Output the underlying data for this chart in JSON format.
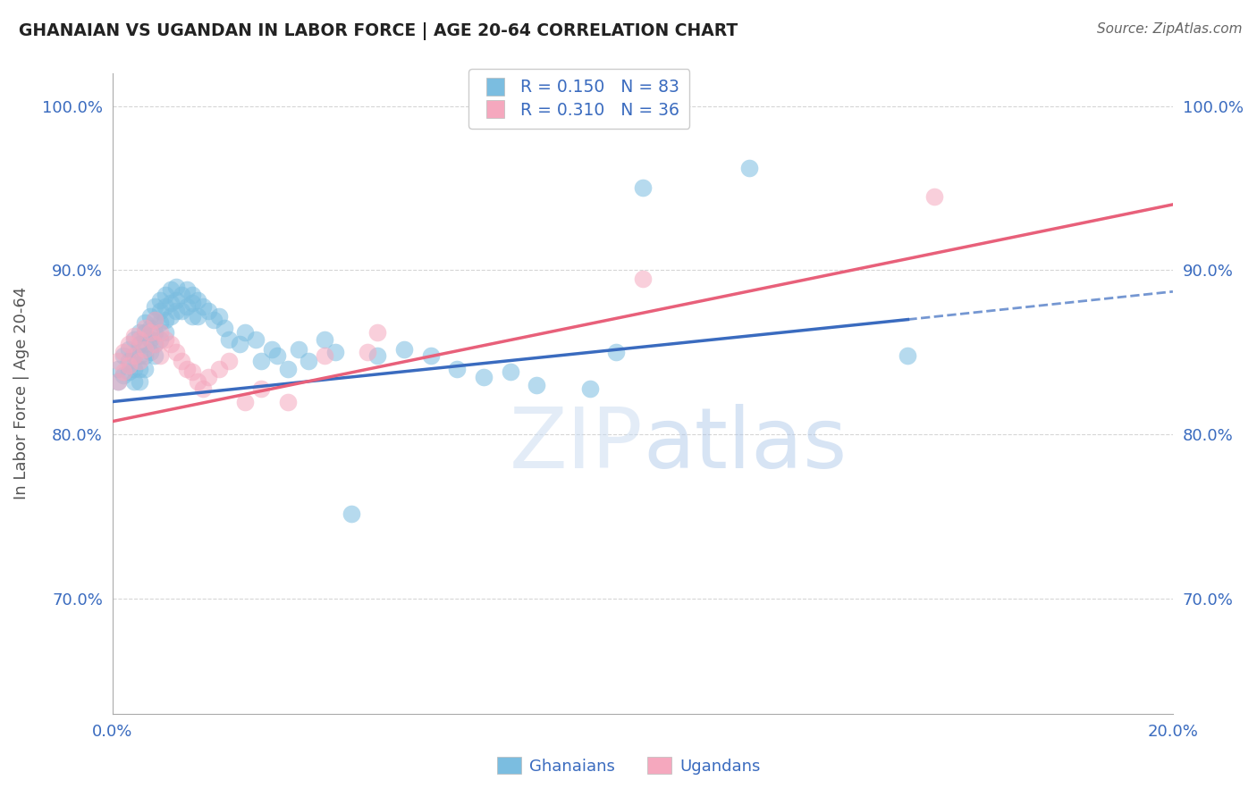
{
  "title": "GHANAIAN VS UGANDAN IN LABOR FORCE | AGE 20-64 CORRELATION CHART",
  "source": "Source: ZipAtlas.com",
  "ylabel": "In Labor Force | Age 20-64",
  "xlim": [
    0.0,
    0.2
  ],
  "ylim": [
    0.63,
    1.02
  ],
  "yticks": [
    0.7,
    0.8,
    0.9,
    1.0
  ],
  "ytick_labels": [
    "70.0%",
    "80.0%",
    "90.0%",
    "100.0%"
  ],
  "xticks": [
    0.0,
    0.025,
    0.05,
    0.075,
    0.1,
    0.125,
    0.15,
    0.175,
    0.2
  ],
  "xtick_labels": [
    "0.0%",
    "",
    "",
    "",
    "",
    "",
    "",
    "",
    "20.0%"
  ],
  "blue_R": 0.15,
  "blue_N": 83,
  "pink_R": 0.31,
  "pink_N": 36,
  "blue_color": "#7bbde0",
  "pink_color": "#f5a8be",
  "trend_blue": "#3a6bbf",
  "trend_pink": "#e8607a",
  "background_color": "#ffffff",
  "grid_color": "#cccccc",
  "text_color": "#3a6bbf",
  "watermark": "ZIPatlas",
  "blue_x": [
    0.001,
    0.001,
    0.002,
    0.002,
    0.003,
    0.003,
    0.003,
    0.004,
    0.004,
    0.004,
    0.004,
    0.005,
    0.005,
    0.005,
    0.005,
    0.005,
    0.006,
    0.006,
    0.006,
    0.006,
    0.006,
    0.007,
    0.007,
    0.007,
    0.007,
    0.008,
    0.008,
    0.008,
    0.008,
    0.008,
    0.009,
    0.009,
    0.009,
    0.009,
    0.01,
    0.01,
    0.01,
    0.01,
    0.011,
    0.011,
    0.011,
    0.012,
    0.012,
    0.012,
    0.013,
    0.013,
    0.014,
    0.014,
    0.015,
    0.015,
    0.015,
    0.016,
    0.016,
    0.017,
    0.018,
    0.019,
    0.02,
    0.021,
    0.022,
    0.024,
    0.025,
    0.027,
    0.028,
    0.03,
    0.031,
    0.033,
    0.035,
    0.037,
    0.04,
    0.042,
    0.045,
    0.05,
    0.055,
    0.06,
    0.065,
    0.07,
    0.075,
    0.08,
    0.09,
    0.095,
    0.1,
    0.12,
    0.15
  ],
  "blue_y": [
    0.84,
    0.832,
    0.848,
    0.836,
    0.852,
    0.845,
    0.838,
    0.858,
    0.848,
    0.84,
    0.832,
    0.862,
    0.855,
    0.848,
    0.84,
    0.832,
    0.868,
    0.862,
    0.855,
    0.848,
    0.84,
    0.872,
    0.865,
    0.858,
    0.85,
    0.878,
    0.87,
    0.862,
    0.855,
    0.848,
    0.882,
    0.875,
    0.868,
    0.858,
    0.885,
    0.878,
    0.87,
    0.862,
    0.888,
    0.88,
    0.872,
    0.89,
    0.882,
    0.875,
    0.885,
    0.875,
    0.888,
    0.878,
    0.885,
    0.88,
    0.872,
    0.882,
    0.872,
    0.878,
    0.875,
    0.87,
    0.872,
    0.865,
    0.858,
    0.855,
    0.862,
    0.858,
    0.845,
    0.852,
    0.848,
    0.84,
    0.852,
    0.845,
    0.858,
    0.85,
    0.752,
    0.848,
    0.852,
    0.848,
    0.84,
    0.835,
    0.838,
    0.83,
    0.828,
    0.85,
    0.95,
    0.962,
    0.848
  ],
  "pink_x": [
    0.001,
    0.001,
    0.002,
    0.002,
    0.003,
    0.003,
    0.004,
    0.004,
    0.005,
    0.005,
    0.006,
    0.006,
    0.007,
    0.008,
    0.008,
    0.009,
    0.009,
    0.01,
    0.011,
    0.012,
    0.013,
    0.014,
    0.015,
    0.016,
    0.017,
    0.018,
    0.02,
    0.022,
    0.025,
    0.028,
    0.033,
    0.04,
    0.048,
    0.1,
    0.155,
    0.05
  ],
  "pink_y": [
    0.845,
    0.832,
    0.85,
    0.838,
    0.855,
    0.842,
    0.86,
    0.848,
    0.858,
    0.845,
    0.865,
    0.852,
    0.862,
    0.87,
    0.855,
    0.862,
    0.848,
    0.858,
    0.855,
    0.85,
    0.845,
    0.84,
    0.838,
    0.832,
    0.828,
    0.835,
    0.84,
    0.845,
    0.82,
    0.828,
    0.82,
    0.848,
    0.85,
    0.895,
    0.945,
    0.862
  ],
  "blue_trend_x0": 0.0,
  "blue_trend_y0": 0.82,
  "blue_trend_x1": 0.15,
  "blue_trend_y1": 0.87,
  "blue_trend_dash_x1": 0.2,
  "blue_trend_dash_y1": 0.887,
  "pink_trend_x0": 0.0,
  "pink_trend_y0": 0.808,
  "pink_trend_x1": 0.2,
  "pink_trend_y1": 0.94
}
